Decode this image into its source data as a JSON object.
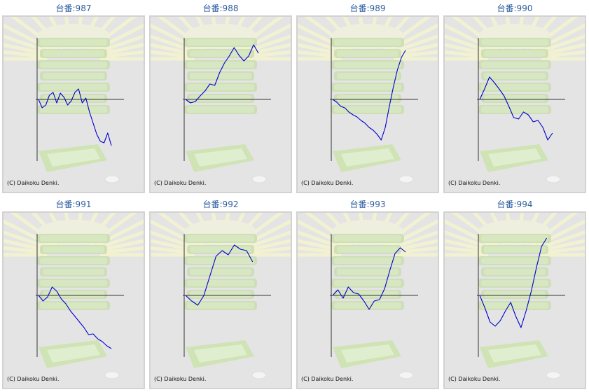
{
  "copyright": "(C) Daikoku Denki.",
  "colors": {
    "title": "#2f5fa0",
    "line": "#0000cc",
    "axis": "#333333",
    "panel_bg": "#e4e4e4"
  },
  "chart_data": [
    {
      "type": "line",
      "title": "台番:987",
      "y": [
        0,
        -12,
        -8,
        6,
        10,
        -5,
        9,
        3,
        -8,
        -2,
        10,
        15,
        -5,
        2,
        -18,
        -34,
        -50,
        -60,
        -62,
        -48,
        -66
      ]
    },
    {
      "type": "line",
      "title": "台番:988",
      "y": [
        0,
        -5,
        -3,
        5,
        12,
        22,
        20,
        38,
        52,
        62,
        74,
        63,
        55,
        62,
        78,
        66
      ]
    },
    {
      "type": "line",
      "title": "台番:989",
      "y": [
        0,
        -4,
        -10,
        -12,
        -18,
        -22,
        -25,
        -30,
        -34,
        -40,
        -44,
        -50,
        -58,
        -40,
        -10,
        18,
        42,
        60,
        70
      ]
    },
    {
      "type": "line",
      "title": "台番:990",
      "y": [
        0,
        15,
        32,
        24,
        15,
        5,
        -10,
        -26,
        -28,
        -18,
        -22,
        -32,
        -30,
        -40,
        -58,
        -48
      ]
    },
    {
      "type": "line",
      "title": "台番:991",
      "y": [
        0,
        -8,
        -2,
        12,
        6,
        -5,
        -12,
        -22,
        -30,
        -38,
        -46,
        -56,
        -55,
        -62,
        -66,
        -72,
        -76
      ]
    },
    {
      "type": "line",
      "title": "台番:992",
      "y": [
        0,
        -8,
        -14,
        0,
        28,
        56,
        64,
        58,
        72,
        66,
        64,
        48
      ]
    },
    {
      "type": "line",
      "title": "台番:993",
      "y": [
        0,
        8,
        -4,
        12,
        4,
        2,
        -8,
        -20,
        -8,
        -6,
        10,
        36,
        60,
        68,
        62
      ]
    },
    {
      "type": "line",
      "title": "台番:994",
      "y": [
        0,
        -18,
        -38,
        -44,
        -36,
        -22,
        -10,
        -30,
        -46,
        -22,
        6,
        40,
        70,
        82
      ]
    }
  ]
}
